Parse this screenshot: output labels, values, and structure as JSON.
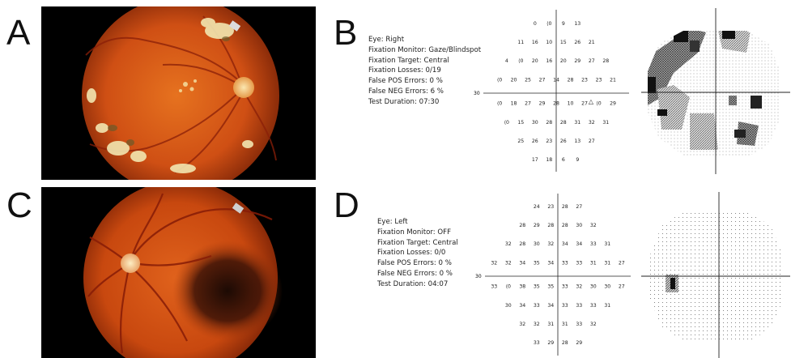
{
  "panels": {
    "a": {
      "letter": "A"
    },
    "b": {
      "letter": "B",
      "info": [
        "Eye: Right",
        "Fixation Monitor: Gaze/Blindspot",
        "Fixation Target: Central",
        "Fixation Losses: 0/19",
        "False POS Errors:  0 %",
        "False NEG Errors:  6 %",
        "Test Duration: 07:30"
      ],
      "axis_label": "30",
      "rows": [
        [
          "0",
          "⟨0",
          "9",
          "13"
        ],
        [
          "11",
          "16",
          "10",
          "15",
          "26",
          "21"
        ],
        [
          "4",
          "⟨0",
          "20",
          "16",
          "20",
          "29",
          "27",
          "28"
        ],
        [
          "⟨0",
          "20",
          "25",
          "27",
          "14",
          "28",
          "23",
          "23",
          "21"
        ],
        [
          "⟨0",
          "18",
          "27",
          "29",
          "28",
          "10",
          "27",
          "⟨0",
          "29"
        ],
        [
          "⟨0",
          "15",
          "30",
          "28",
          "28",
          "31",
          "32",
          "31"
        ],
        [
          "25",
          "26",
          "23",
          "26",
          "13",
          "27"
        ],
        [
          "17",
          "18",
          "6",
          "9"
        ]
      ],
      "marker": "△"
    },
    "c": {
      "letter": "C"
    },
    "d": {
      "letter": "D",
      "info": [
        "Eye: Left",
        "Fixation Monitor: OFF",
        "Fixation Target: Central",
        "Fixation Losses: 0/0",
        "False POS Errors:  0 %",
        "False NEG Errors:  0 %",
        "Test Duration: 04:07"
      ],
      "axis_label": "30",
      "rows": [
        [
          "24",
          "23",
          "28",
          "27"
        ],
        [
          "28",
          "29",
          "28",
          "28",
          "30",
          "32"
        ],
        [
          "32",
          "28",
          "30",
          "32",
          "34",
          "34",
          "33",
          "31"
        ],
        [
          "32",
          "32",
          "34",
          "35",
          "34",
          "33",
          "33",
          "31",
          "31",
          "27"
        ],
        [
          "33",
          "⟨0",
          "38",
          "35",
          "35",
          "33",
          "32",
          "30",
          "30",
          "27"
        ],
        [
          "30",
          "34",
          "33",
          "34",
          "33",
          "33",
          "33",
          "31"
        ],
        [
          "32",
          "32",
          "31",
          "31",
          "33",
          "32"
        ],
        [
          "33",
          "29",
          "28",
          "29"
        ]
      ]
    }
  },
  "colors": {
    "fundus_bg": "#000000",
    "retina_center": "#e0641c",
    "retina_edge": "#8a2608",
    "optic_disc": "#f3d08a",
    "vessel": "#8e1d08",
    "lesion": "#f0e4a8",
    "grayscale_dark": "#111111"
  }
}
